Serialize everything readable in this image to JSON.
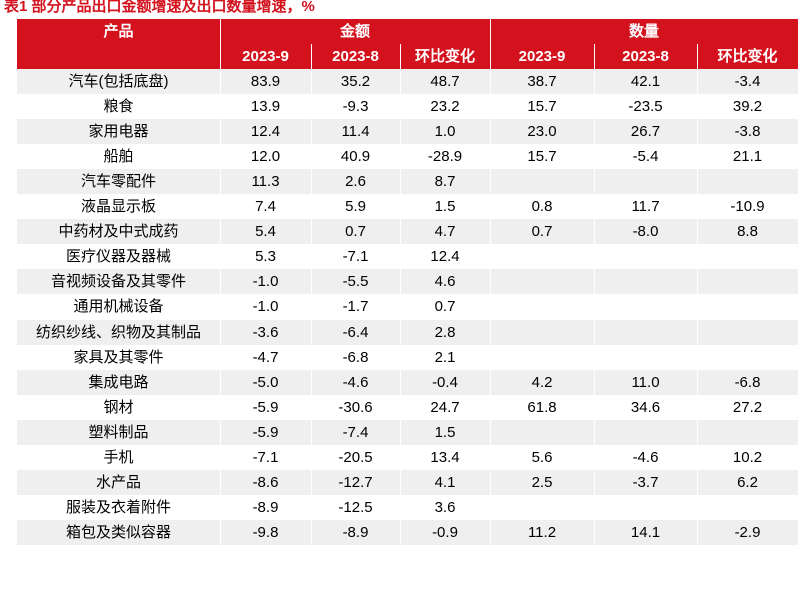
{
  "caption": "表1 部分产品出口金额增速及出口数量增速，%",
  "header": {
    "product": "产品",
    "amount_group": "金额",
    "quantity_group": "数量",
    "subcols": [
      "2023-9",
      "2023-8",
      "环比变化",
      "2023-9",
      "2023-8",
      "环比变化"
    ]
  },
  "rows": [
    {
      "product": "汽车(包括底盘)",
      "values": [
        "83.9",
        "35.2",
        "48.7",
        "38.7",
        "42.1",
        "-3.4"
      ]
    },
    {
      "product": "粮食",
      "values": [
        "13.9",
        "-9.3",
        "23.2",
        "15.7",
        "-23.5",
        "39.2"
      ]
    },
    {
      "product": "家用电器",
      "values": [
        "12.4",
        "11.4",
        "1.0",
        "23.0",
        "26.7",
        "-3.8"
      ]
    },
    {
      "product": "船舶",
      "values": [
        "12.0",
        "40.9",
        "-28.9",
        "15.7",
        "-5.4",
        "21.1"
      ]
    },
    {
      "product": "汽车零配件",
      "values": [
        "11.3",
        "2.6",
        "8.7",
        "",
        "",
        ""
      ]
    },
    {
      "product": "液晶显示板",
      "values": [
        "7.4",
        "5.9",
        "1.5",
        "0.8",
        "11.7",
        "-10.9"
      ]
    },
    {
      "product": "中药材及中式成药",
      "values": [
        "5.4",
        "0.7",
        "4.7",
        "0.7",
        "-8.0",
        "8.8"
      ]
    },
    {
      "product": "医疗仪器及器械",
      "values": [
        "5.3",
        "-7.1",
        "12.4",
        "",
        "",
        ""
      ]
    },
    {
      "product": "音视频设备及其零件",
      "values": [
        "-1.0",
        "-5.5",
        "4.6",
        "",
        "",
        ""
      ]
    },
    {
      "product": "通用机械设备",
      "values": [
        "-1.0",
        "-1.7",
        "0.7",
        "",
        "",
        ""
      ]
    },
    {
      "product": "纺织纱线、织物及其制品",
      "values": [
        "-3.6",
        "-6.4",
        "2.8",
        "",
        "",
        ""
      ]
    },
    {
      "product": "家具及其零件",
      "values": [
        "-4.7",
        "-6.8",
        "2.1",
        "",
        "",
        ""
      ]
    },
    {
      "product": "集成电路",
      "values": [
        "-5.0",
        "-4.6",
        "-0.4",
        "4.2",
        "11.0",
        "-6.8"
      ]
    },
    {
      "product": "钢材",
      "values": [
        "-5.9",
        "-30.6",
        "24.7",
        "61.8",
        "34.6",
        "27.2"
      ]
    },
    {
      "product": "塑料制品",
      "values": [
        "-5.9",
        "-7.4",
        "1.5",
        "",
        "",
        ""
      ]
    },
    {
      "product": "手机",
      "values": [
        "-7.1",
        "-20.5",
        "13.4",
        "5.6",
        "-4.6",
        "10.2"
      ]
    },
    {
      "product": "水产品",
      "values": [
        "-8.6",
        "-12.7",
        "4.1",
        "2.5",
        "-3.7",
        "6.2"
      ]
    },
    {
      "product": "服装及衣着附件",
      "values": [
        "-8.9",
        "-12.5",
        "3.6",
        "",
        "",
        ""
      ]
    },
    {
      "product": "箱包及类似容器",
      "values": [
        "-9.8",
        "-8.9",
        "-0.9",
        "11.2",
        "14.1",
        "-2.9"
      ]
    }
  ]
}
